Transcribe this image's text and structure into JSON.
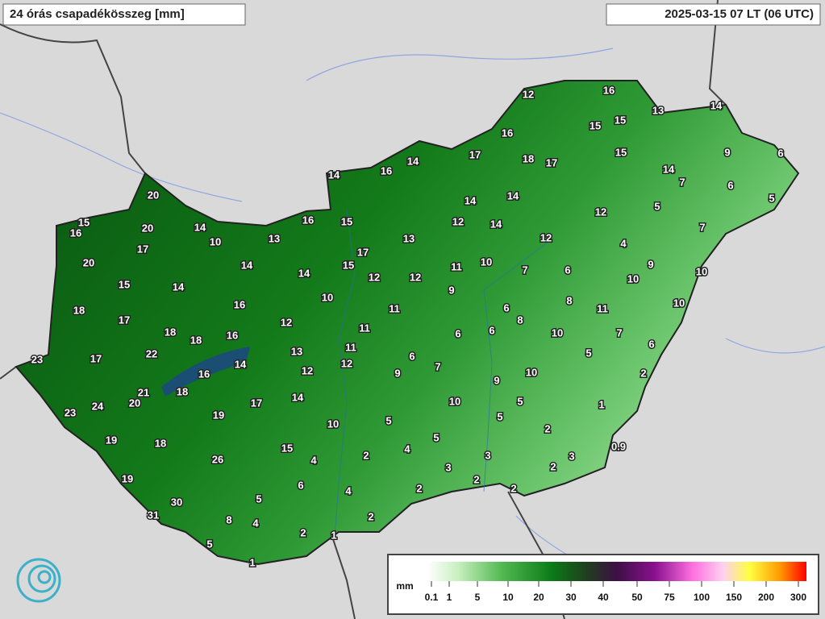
{
  "title": "24 órás csapadékösszeg [mm]",
  "timestamp": "2025-03-15 07 LT (06 UTC)",
  "stations": [
    12,
    16,
    13,
    14,
    15,
    15,
    16,
    17,
    18,
    17,
    15,
    9,
    6,
    14,
    16,
    14,
    14,
    7,
    6,
    5,
    20,
    14,
    14,
    12,
    5,
    15,
    16,
    20,
    14,
    16,
    15,
    12,
    14,
    7,
    10,
    13,
    13,
    12,
    4,
    17,
    17,
    20,
    14,
    15,
    11,
    10,
    7,
    6,
    9,
    10,
    14,
    12,
    12,
    10,
    15,
    14,
    9,
    18,
    16,
    10,
    11,
    6,
    8,
    11,
    10,
    17,
    12,
    11,
    8,
    18,
    18,
    16,
    6,
    6,
    10,
    7,
    6,
    23,
    17,
    22,
    13,
    11,
    14,
    6,
    12,
    7,
    5,
    16,
    12,
    9,
    10,
    2,
    18,
    21,
    20,
    14,
    9,
    10,
    5,
    1,
    23,
    24,
    17,
    19,
    10,
    5,
    5,
    2,
    19,
    18,
    15,
    5,
    4,
    2,
    0.9,
    26,
    4,
    3,
    3,
    3,
    2,
    19,
    6,
    4,
    2,
    2,
    2,
    30,
    5,
    31,
    8,
    4,
    2,
    2,
    1,
    5,
    1
  ],
  "legend": {
    "unit": "mm",
    "ticks": [
      0.1,
      1,
      5,
      10,
      20,
      30,
      40,
      50,
      75,
      100,
      150,
      200,
      300
    ]
  }
}
